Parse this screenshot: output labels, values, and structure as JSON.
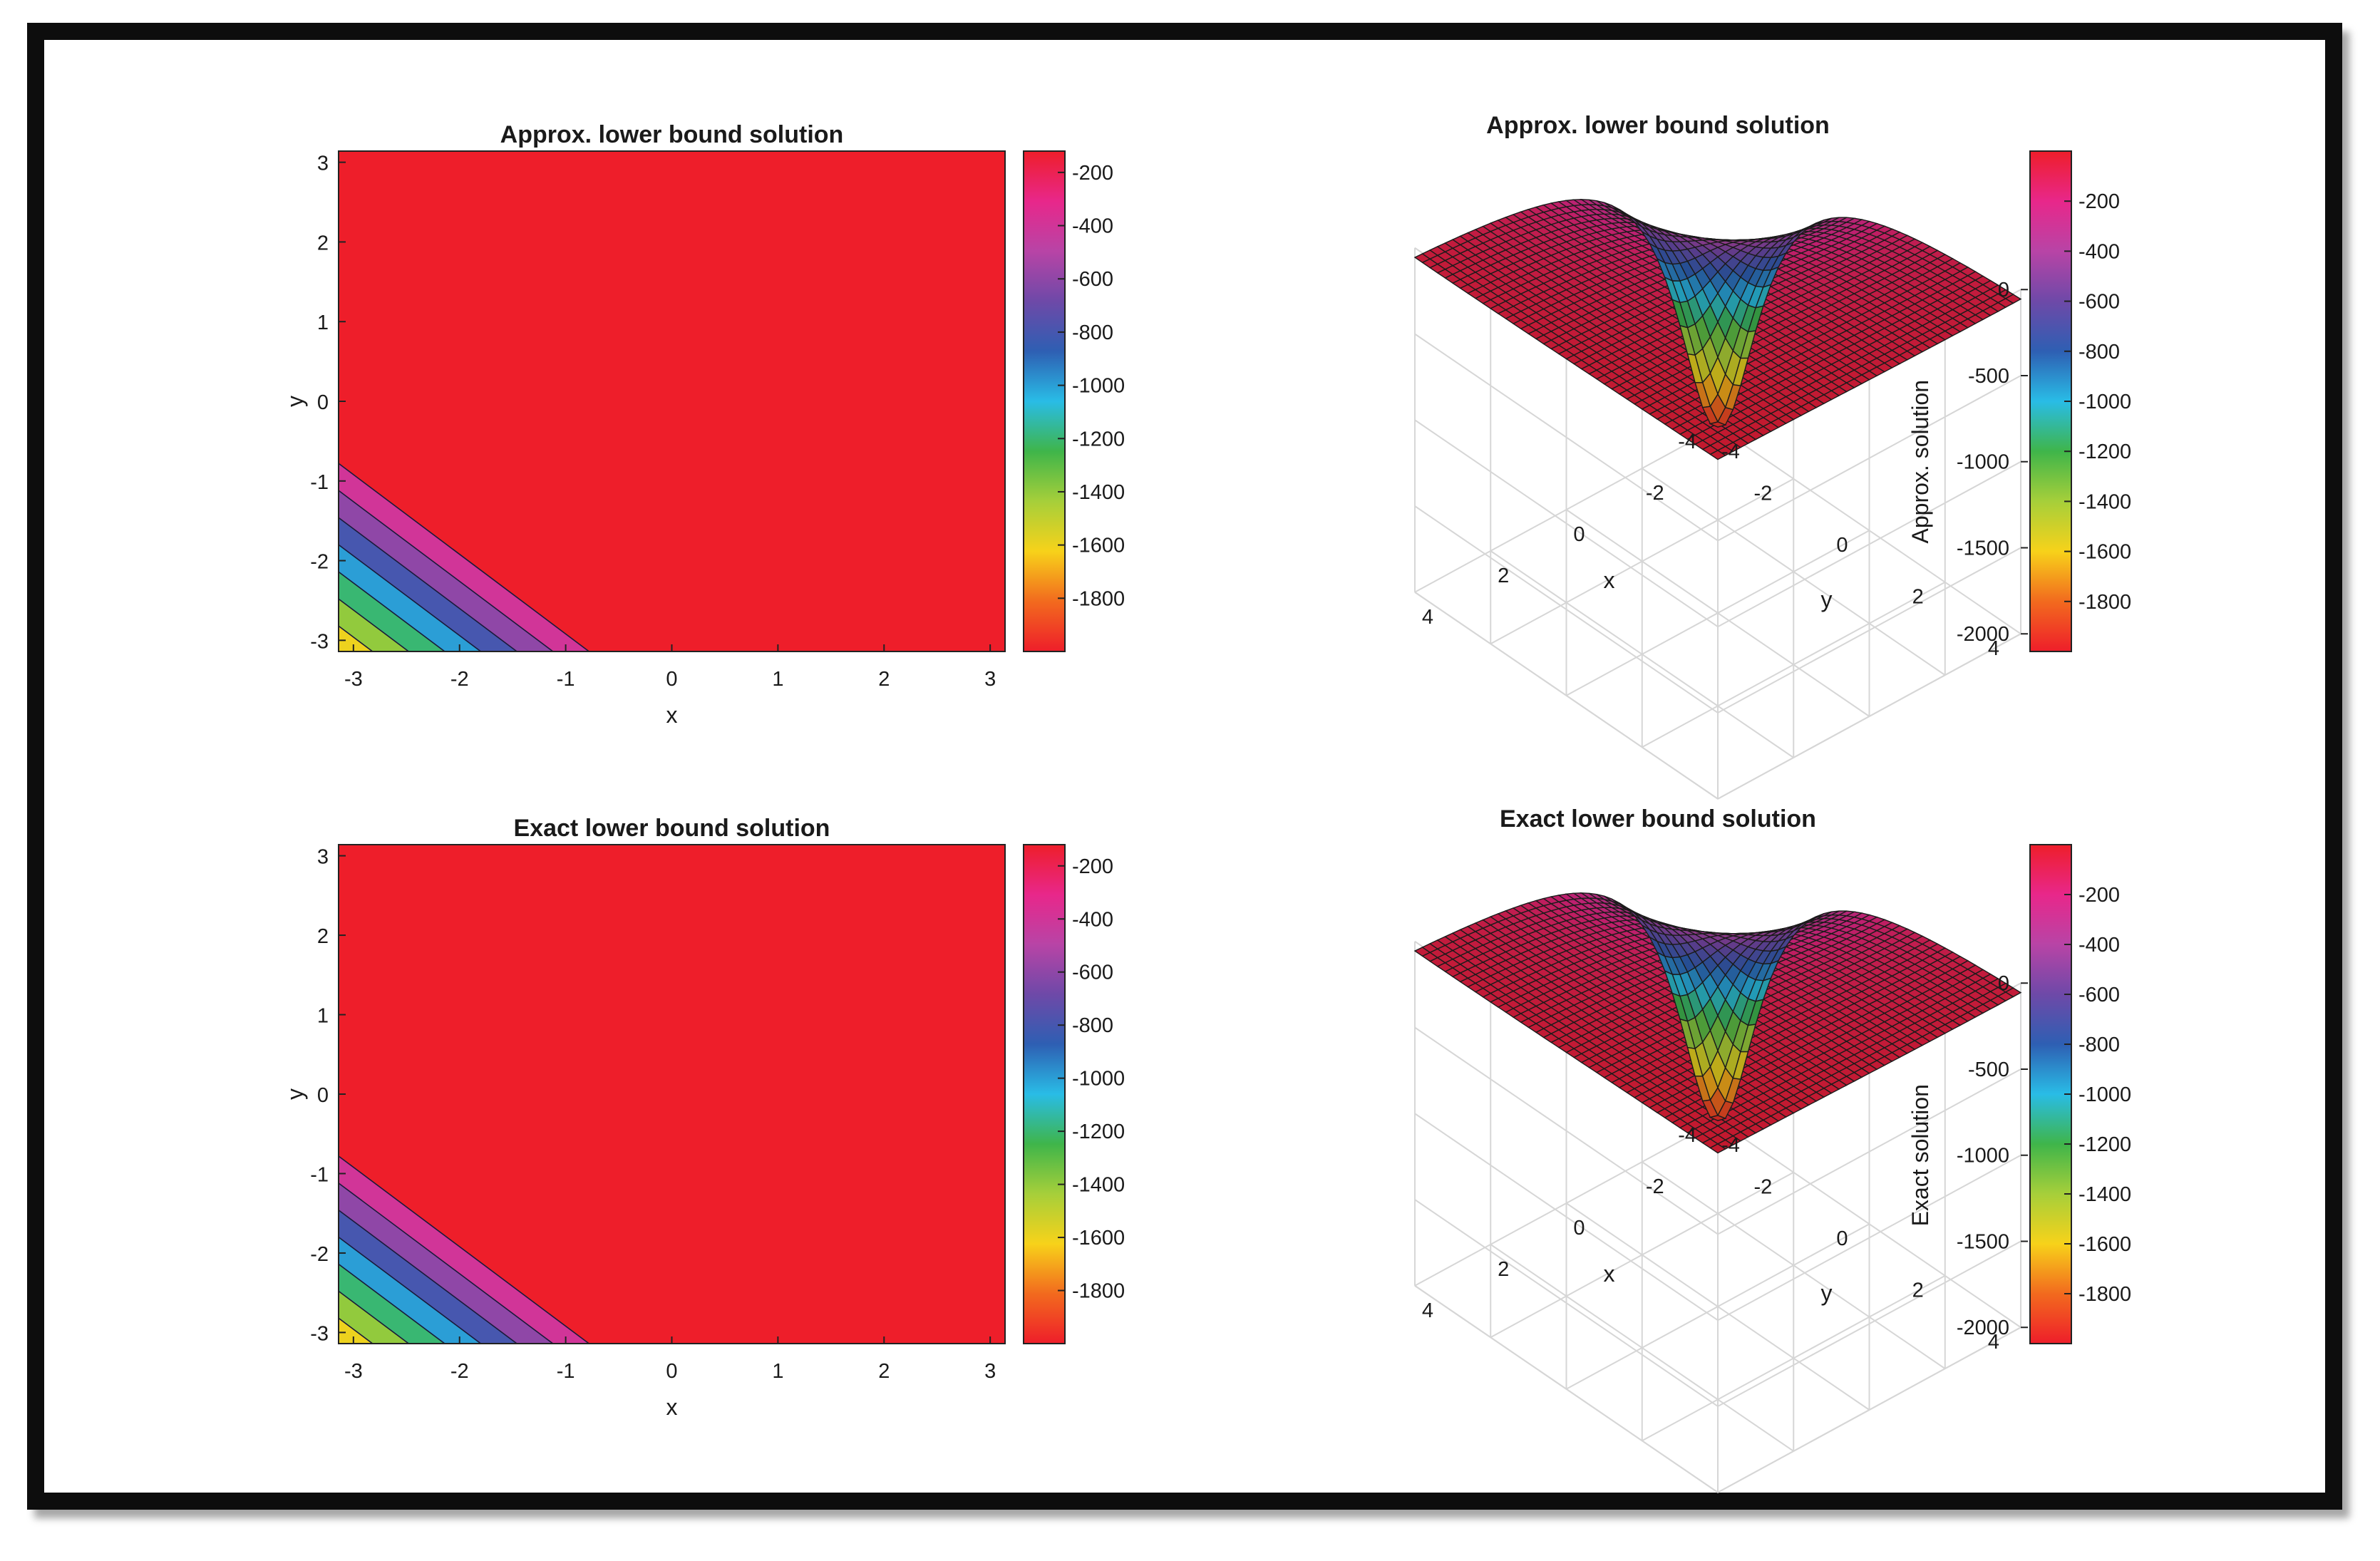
{
  "chart_data": [
    {
      "type": "heatmap",
      "style": "filled-contour",
      "title": "Approx. lower bound solution",
      "xlabel": "x",
      "ylabel": "y",
      "xlim": [
        -3.14,
        3.14
      ],
      "ylim": [
        -3.14,
        3.14
      ],
      "xticks": [
        -3,
        -2,
        -1,
        0,
        1,
        2,
        3
      ],
      "yticks": [
        -3,
        -2,
        -1,
        0,
        1,
        2,
        3
      ],
      "colorbar_range": [
        -2000,
        -120
      ],
      "colorbar_ticks": [
        -200,
        -400,
        -600,
        -800,
        -1000,
        -1200,
        -1400,
        -1600,
        -1800
      ],
      "contour_levels": [
        -1800,
        -1600,
        -1400,
        -1200,
        -1000,
        -800,
        -600,
        -400,
        -200
      ]
    },
    {
      "type": "surface",
      "title": "Approx. lower bound solution",
      "xlabel": "x",
      "ylabel": "y",
      "zlabel": "Approx. solution",
      "xlim": [
        -4,
        4
      ],
      "ylim": [
        -4,
        4
      ],
      "zlim": [
        -2000,
        0
      ],
      "xticks": [
        -4,
        -2,
        0,
        2,
        4
      ],
      "yticks": [
        -4,
        -2,
        0,
        2,
        4
      ],
      "zticks": [
        0,
        -500,
        -1000,
        -1500,
        -2000
      ],
      "colorbar_range": [
        -2000,
        0
      ],
      "colorbar_ticks": [
        -200,
        -400,
        -600,
        -800,
        -1000,
        -1200,
        -1400,
        -1600,
        -1800
      ]
    },
    {
      "type": "heatmap",
      "style": "filled-contour",
      "title": "Exact lower bound solution",
      "xlabel": "x",
      "ylabel": "y",
      "xlim": [
        -3.14,
        3.14
      ],
      "ylim": [
        -3.14,
        3.14
      ],
      "xticks": [
        -3,
        -2,
        -1,
        0,
        1,
        2,
        3
      ],
      "yticks": [
        -3,
        -2,
        -1,
        0,
        1,
        2,
        3
      ],
      "colorbar_range": [
        -2000,
        -120
      ],
      "colorbar_ticks": [
        -200,
        -400,
        -600,
        -800,
        -1000,
        -1200,
        -1400,
        -1600,
        -1800
      ],
      "contour_levels": [
        -1800,
        -1600,
        -1400,
        -1200,
        -1000,
        -800,
        -600,
        -400,
        -200
      ]
    },
    {
      "type": "surface",
      "title": "Exact lower bound solution",
      "xlabel": "x",
      "ylabel": "y",
      "zlabel": "Exact solution",
      "xlim": [
        -4,
        4
      ],
      "ylim": [
        -4,
        4
      ],
      "zlim": [
        -2000,
        0
      ],
      "xticks": [
        -4,
        -2,
        0,
        2,
        4
      ],
      "yticks": [
        -4,
        -2,
        0,
        2,
        4
      ],
      "zticks": [
        0,
        -500,
        -1000,
        -1500,
        -2000
      ],
      "colorbar_range": [
        -2000,
        0
      ],
      "colorbar_ticks": [
        -200,
        -400,
        -600,
        -800,
        -1000,
        -1200,
        -1400,
        -1600,
        -1800
      ]
    }
  ],
  "colormap": [
    "#ee1e2a",
    "#f26a1e",
    "#f7d21a",
    "#a6cf3a",
    "#3fb54a",
    "#29bce6",
    "#2e5fb3",
    "#6e49a8",
    "#b844a6",
    "#e8278a",
    "#ee1e2a"
  ]
}
